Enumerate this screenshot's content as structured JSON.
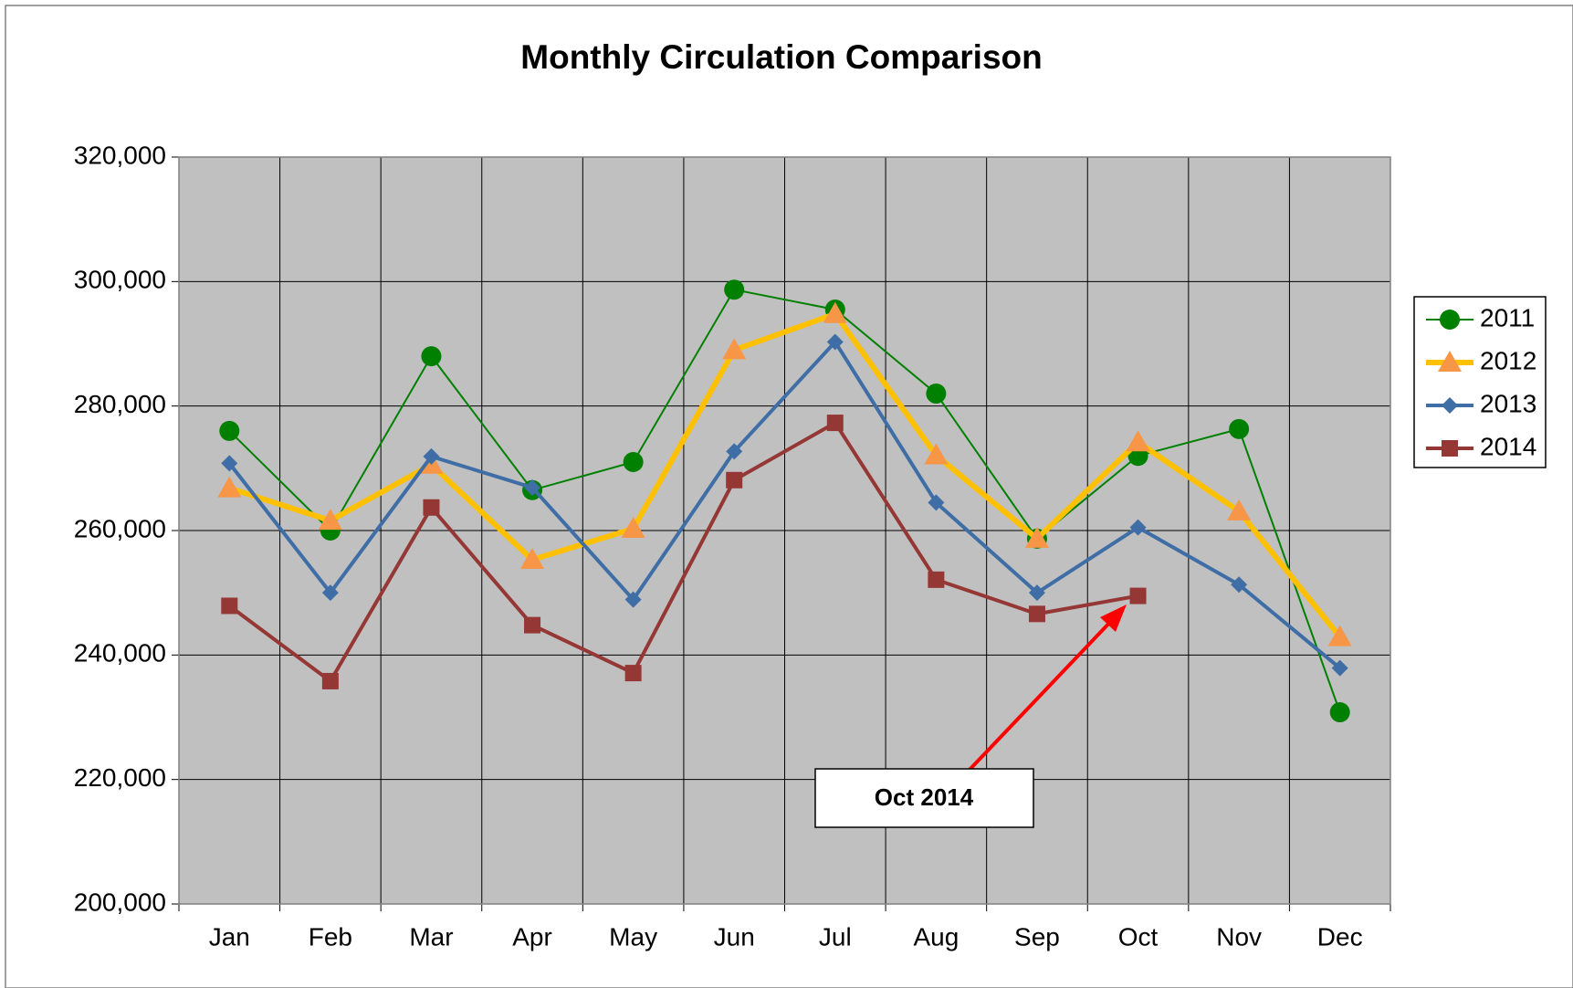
{
  "chart_data": {
    "type": "line",
    "title": "Monthly Circulation Comparison",
    "categories": [
      "Jan",
      "Feb",
      "Mar",
      "Apr",
      "May",
      "Jun",
      "Jul",
      "Aug",
      "Sep",
      "Oct",
      "Nov",
      "Dec"
    ],
    "series": [
      {
        "name": "2011",
        "color": "#008000",
        "marker": "circle",
        "marker_color": "#008000",
        "width": 2,
        "values": [
          276000,
          260000,
          288000,
          266500,
          271000,
          298700,
          295500,
          282000,
          258700,
          272000,
          276300,
          230800
        ]
      },
      {
        "name": "2012",
        "color": "#ffc000",
        "marker": "triangle",
        "marker_color": "#f79646",
        "width": 6,
        "values": [
          266800,
          261600,
          270600,
          255300,
          260300,
          289000,
          294800,
          272100,
          258700,
          274200,
          263100,
          242900
        ]
      },
      {
        "name": "2013",
        "color": "#3f6ea6",
        "marker": "diamond",
        "marker_color": "#3f6ea6",
        "width": 4,
        "values": [
          270800,
          250000,
          271900,
          266900,
          248900,
          272700,
          290300,
          264500,
          250000,
          260500,
          251300,
          237900
        ]
      },
      {
        "name": "2014",
        "color": "#953735",
        "marker": "square",
        "marker_color": "#953735",
        "width": 4,
        "values": [
          247900,
          235800,
          263700,
          244800,
          237100,
          268100,
          277300,
          252100,
          246600,
          249500,
          null,
          null
        ]
      }
    ],
    "ylim": [
      200000,
      320000
    ],
    "yticks": [
      {
        "value": 200000,
        "label": "200,000"
      },
      {
        "value": 220000,
        "label": "220,000"
      },
      {
        "value": 240000,
        "label": "240,000"
      },
      {
        "value": 260000,
        "label": "260,000"
      },
      {
        "value": 280000,
        "label": "280,000"
      },
      {
        "value": 300000,
        "label": "300,000"
      },
      {
        "value": 320000,
        "label": "320,000"
      }
    ],
    "grid": true,
    "plot_background": "#c0c0c0",
    "legend": "right",
    "annotation": "Oct 2014"
  }
}
